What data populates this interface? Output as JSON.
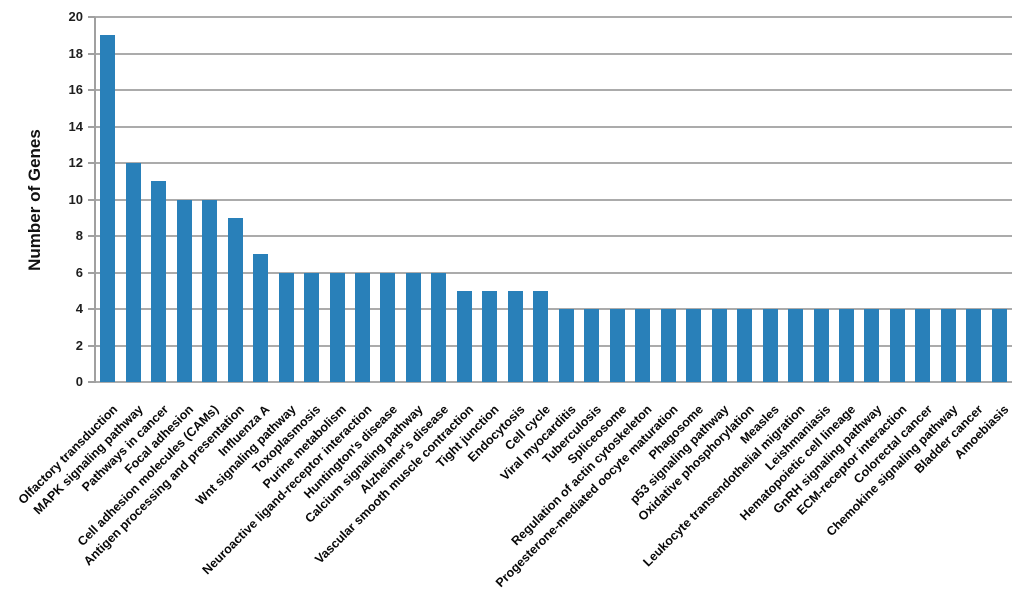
{
  "chart_data": {
    "type": "bar",
    "title": "",
    "xlabel": "",
    "ylabel": "Number of Genes",
    "ylim": [
      0,
      20
    ],
    "yticks": [
      0,
      2,
      4,
      6,
      8,
      10,
      12,
      14,
      16,
      18,
      20
    ],
    "grid": true,
    "legend": "none",
    "bar_color": "#2980b9",
    "grid_color": "#ababab",
    "axis_color": "#a0a0a0",
    "categories": [
      "Olfactory transduction",
      "MAPK signaling pathway",
      "Pathways in cancer",
      "Focal adhesion",
      "Cell adhesion molecules (CAMs)",
      "Antigen processing and presentation",
      "Influenza A",
      "Wnt signaling pathway",
      "Toxoplasmosis",
      "Purine metabolism",
      "Neuroactive ligand-receptor interaction",
      "Huntington's disease",
      "Calcium signaling pathway",
      "Alzheimer's disease",
      "Vascular smooth muscle contraction",
      "Tight junction",
      "Endocytosis",
      "Cell cycle",
      "Viral myocarditis",
      "Tuberculosis",
      "Spliceosome",
      "Regulation of actin cytoskeleton",
      "Progesterone-mediated oocyte maturation",
      "Phagosome",
      "p53 signaling pathway",
      "Oxidative phosphorylation",
      "Measles",
      "Leukocyte transendothelial migration",
      "Leishmaniasis",
      "Hematopoietic cell lineage",
      "GnRH signaling pathway",
      "ECM-receptor interaction",
      "Colorectal cancer",
      "Chemokine signaling pathway",
      "Bladder cancer",
      "Amoebiasis"
    ],
    "values": [
      19,
      12,
      11,
      10,
      10,
      9,
      7,
      6,
      6,
      6,
      6,
      6,
      6,
      6,
      5,
      5,
      5,
      5,
      4,
      4,
      4,
      4,
      4,
      4,
      4,
      4,
      4,
      4,
      4,
      4,
      4,
      4,
      4,
      4,
      4,
      4
    ]
  }
}
